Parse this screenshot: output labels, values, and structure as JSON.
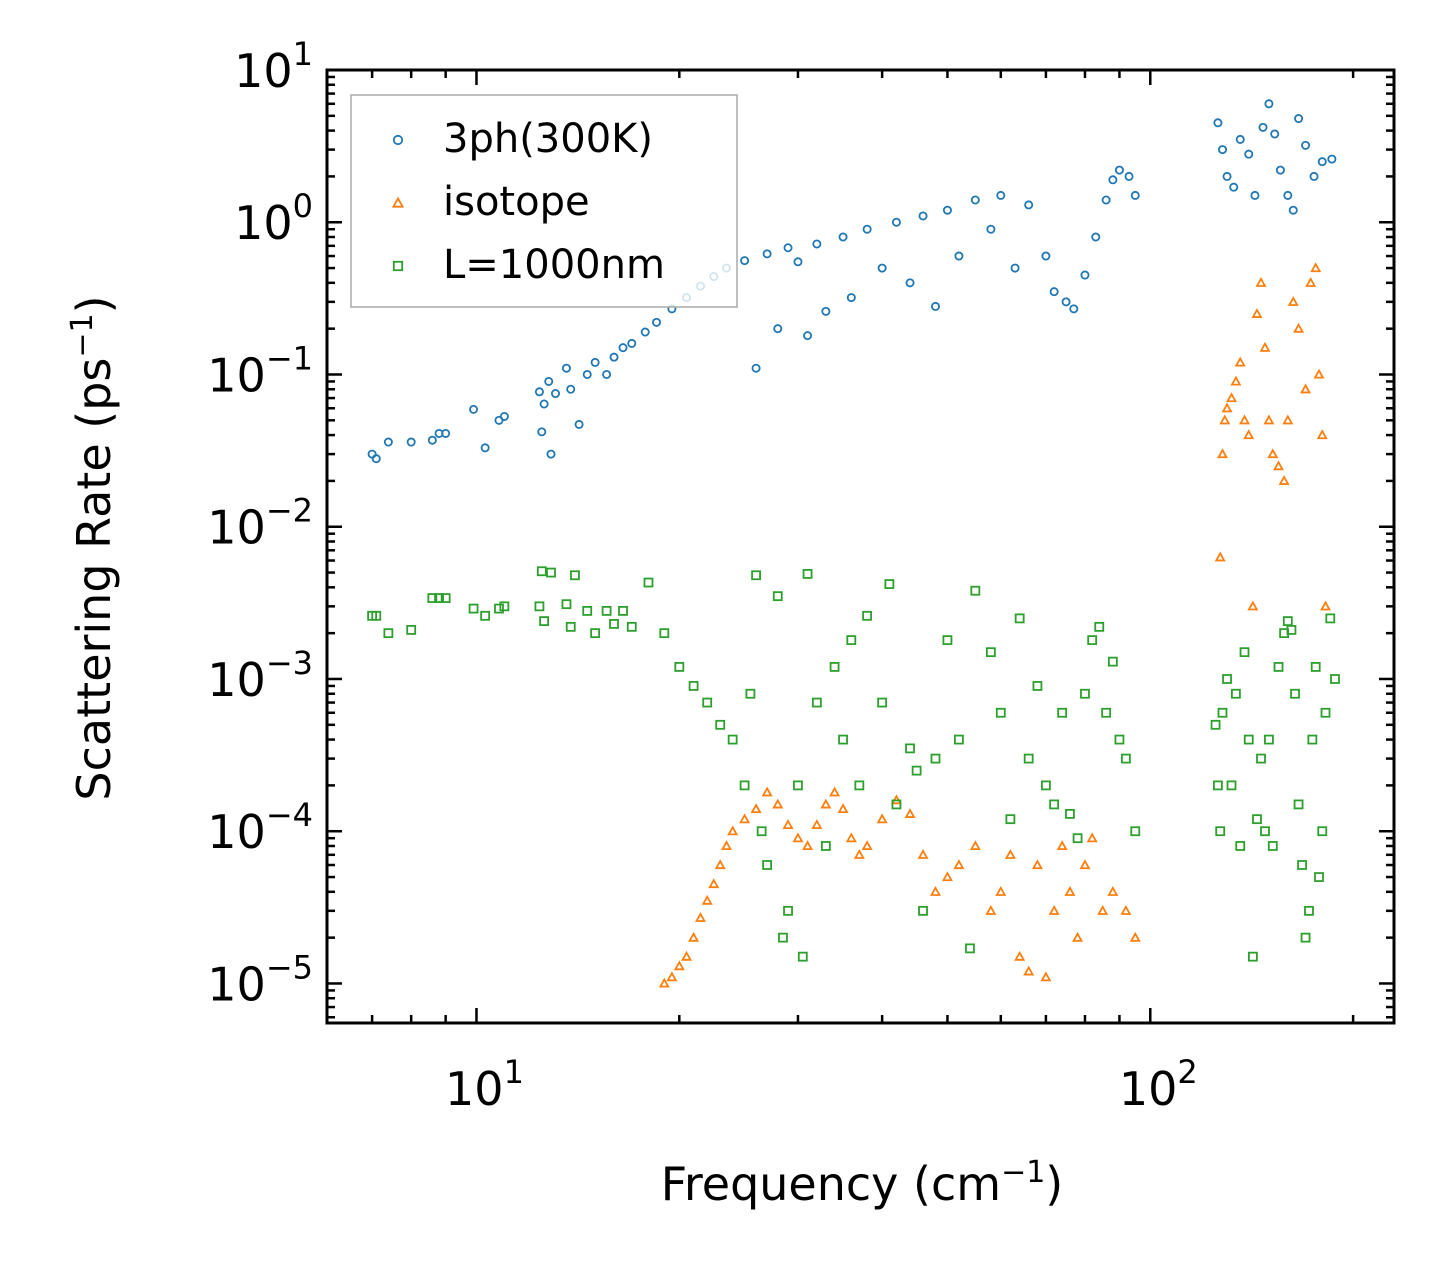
{
  "chart_data": {
    "type": "scatter",
    "x_scale": "log",
    "y_scale": "log",
    "xlabel": {
      "base": "Frequency (cm",
      "sup": "−1",
      "tail": ")"
    },
    "ylabel": {
      "base": "Scattering Rate (ps",
      "sup": "−1",
      "tail": ")"
    },
    "xlim": [
      6,
      230
    ],
    "ylim": [
      5.5e-06,
      10
    ],
    "x_ticks": [
      {
        "value": 10,
        "base": "10",
        "exp": "1"
      },
      {
        "value": 100,
        "base": "10",
        "exp": "2"
      }
    ],
    "y_ticks": [
      {
        "value": 10,
        "base": "10",
        "exp": "1"
      },
      {
        "value": 1,
        "base": "10",
        "exp": "0"
      },
      {
        "value": 0.1,
        "base": "10",
        "exp": "−1"
      },
      {
        "value": 0.01,
        "base": "10",
        "exp": "−2"
      },
      {
        "value": 0.001,
        "base": "10",
        "exp": "−3"
      },
      {
        "value": 0.0001,
        "base": "10",
        "exp": "−4"
      },
      {
        "value": 1e-05,
        "base": "10",
        "exp": "−5"
      }
    ],
    "legend_position": "top-left",
    "series": [
      {
        "name": "3ph(300K)",
        "marker": "circle",
        "color": "#1f77b4",
        "points": [
          [
            7,
            0.03
          ],
          [
            7.1,
            0.028
          ],
          [
            7.4,
            0.036
          ],
          [
            8,
            0.036
          ],
          [
            8.6,
            0.037
          ],
          [
            8.8,
            0.041
          ],
          [
            9,
            0.041
          ],
          [
            9.9,
            0.059
          ],
          [
            10.3,
            0.033
          ],
          [
            10.8,
            0.05
          ],
          [
            11,
            0.053
          ],
          [
            12.4,
            0.077
          ],
          [
            12.5,
            0.042
          ],
          [
            12.6,
            0.064
          ],
          [
            12.8,
            0.09
          ],
          [
            12.9,
            0.03
          ],
          [
            13.1,
            0.075
          ],
          [
            13.6,
            0.11
          ],
          [
            13.8,
            0.08
          ],
          [
            14.2,
            0.047
          ],
          [
            14.6,
            0.1
          ],
          [
            15,
            0.12
          ],
          [
            15.6,
            0.1
          ],
          [
            16,
            0.13
          ],
          [
            16.5,
            0.15
          ],
          [
            17,
            0.16
          ],
          [
            17.8,
            0.19
          ],
          [
            18.5,
            0.22
          ],
          [
            19.5,
            0.27
          ],
          [
            20.5,
            0.32
          ],
          [
            21.5,
            0.38
          ],
          [
            22.5,
            0.44
          ],
          [
            23.5,
            0.5
          ],
          [
            25,
            0.56
          ],
          [
            26,
            0.11
          ],
          [
            27,
            0.62
          ],
          [
            28,
            0.2
          ],
          [
            29,
            0.68
          ],
          [
            30,
            0.55
          ],
          [
            31,
            0.18
          ],
          [
            32,
            0.72
          ],
          [
            33,
            0.26
          ],
          [
            35,
            0.8
          ],
          [
            36,
            0.32
          ],
          [
            38,
            0.9
          ],
          [
            40,
            0.5
          ],
          [
            42,
            1.0
          ],
          [
            44,
            0.4
          ],
          [
            46,
            1.1
          ],
          [
            48,
            0.28
          ],
          [
            50,
            1.2
          ],
          [
            52,
            0.6
          ],
          [
            55,
            1.4
          ],
          [
            58,
            0.9
          ],
          [
            60,
            1.5
          ],
          [
            63,
            0.5
          ],
          [
            66,
            1.3
          ],
          [
            70,
            0.6
          ],
          [
            72,
            0.35
          ],
          [
            75,
            0.3
          ],
          [
            77,
            0.27
          ],
          [
            80,
            0.45
          ],
          [
            83,
            0.8
          ],
          [
            86,
            1.4
          ],
          [
            88,
            1.9
          ],
          [
            90,
            2.2
          ],
          [
            93,
            2.0
          ],
          [
            95,
            1.5
          ],
          [
            126,
            4.5
          ],
          [
            128,
            3.0
          ],
          [
            130,
            2.0
          ],
          [
            133,
            1.7
          ],
          [
            136,
            3.5
          ],
          [
            140,
            2.8
          ],
          [
            143,
            1.5
          ],
          [
            147,
            4.2
          ],
          [
            150,
            6.0
          ],
          [
            153,
            3.8
          ],
          [
            156,
            2.2
          ],
          [
            160,
            1.5
          ],
          [
            163,
            1.2
          ],
          [
            166,
            4.8
          ],
          [
            170,
            3.2
          ],
          [
            175,
            2.0
          ],
          [
            180,
            2.5
          ],
          [
            186,
            2.6
          ]
        ]
      },
      {
        "name": "isotope",
        "marker": "triangle",
        "color": "#ff7f0e",
        "points": [
          [
            19,
            1e-05
          ],
          [
            19.5,
            1.1e-05
          ],
          [
            20,
            1.3e-05
          ],
          [
            20.5,
            1.5e-05
          ],
          [
            21,
            2e-05
          ],
          [
            21.5,
            2.7e-05
          ],
          [
            22,
            3.5e-05
          ],
          [
            22.5,
            4.5e-05
          ],
          [
            23,
            6e-05
          ],
          [
            23.5,
            8e-05
          ],
          [
            24,
            0.0001
          ],
          [
            25,
            0.00012
          ],
          [
            26,
            0.00014
          ],
          [
            27,
            0.00018
          ],
          [
            28,
            0.00015
          ],
          [
            29,
            0.00011
          ],
          [
            30,
            9e-05
          ],
          [
            31,
            8e-05
          ],
          [
            32,
            0.00011
          ],
          [
            33,
            0.00015
          ],
          [
            34,
            0.00018
          ],
          [
            35,
            0.00014
          ],
          [
            36,
            9e-05
          ],
          [
            37,
            7e-05
          ],
          [
            38,
            8e-05
          ],
          [
            40,
            0.00012
          ],
          [
            42,
            0.00016
          ],
          [
            44,
            0.00013
          ],
          [
            46,
            7e-05
          ],
          [
            48,
            4e-05
          ],
          [
            50,
            5e-05
          ],
          [
            52,
            6e-05
          ],
          [
            55,
            8e-05
          ],
          [
            58,
            3e-05
          ],
          [
            60,
            4e-05
          ],
          [
            62,
            7e-05
          ],
          [
            64,
            1.5e-05
          ],
          [
            66,
            1.2e-05
          ],
          [
            68,
            6e-05
          ],
          [
            70,
            1.1e-05
          ],
          [
            72,
            3e-05
          ],
          [
            74,
            8e-05
          ],
          [
            76,
            4e-05
          ],
          [
            78,
            2e-05
          ],
          [
            80,
            6e-05
          ],
          [
            82,
            9e-05
          ],
          [
            85,
            3e-05
          ],
          [
            88,
            4e-05
          ],
          [
            92,
            3e-05
          ],
          [
            95,
            2e-05
          ],
          [
            127,
            0.0063
          ],
          [
            128,
            0.03
          ],
          [
            129,
            0.05
          ],
          [
            130,
            0.06
          ],
          [
            132,
            0.07
          ],
          [
            134,
            0.09
          ],
          [
            136,
            0.12
          ],
          [
            138,
            0.05
          ],
          [
            140,
            0.04
          ],
          [
            142,
            0.003
          ],
          [
            144,
            0.25
          ],
          [
            146,
            0.4
          ],
          [
            148,
            0.15
          ],
          [
            150,
            0.05
          ],
          [
            152,
            0.03
          ],
          [
            155,
            0.025
          ],
          [
            158,
            0.02
          ],
          [
            160,
            0.05
          ],
          [
            163,
            0.3
          ],
          [
            166,
            0.2
          ],
          [
            170,
            0.08
          ],
          [
            173,
            0.4
          ],
          [
            176,
            0.5
          ],
          [
            178,
            0.1
          ],
          [
            180,
            0.04
          ],
          [
            182,
            0.003
          ]
        ]
      },
      {
        "name": "L=1000nm",
        "marker": "square",
        "color": "#2ca02c",
        "points": [
          [
            7,
            0.0026
          ],
          [
            7.1,
            0.0026
          ],
          [
            7.4,
            0.002
          ],
          [
            8,
            0.0021
          ],
          [
            8.6,
            0.0034
          ],
          [
            8.8,
            0.0034
          ],
          [
            9,
            0.0034
          ],
          [
            9.9,
            0.0029
          ],
          [
            10.3,
            0.0026
          ],
          [
            10.8,
            0.0029
          ],
          [
            11,
            0.003
          ],
          [
            12.4,
            0.003
          ],
          [
            12.5,
            0.0051
          ],
          [
            12.6,
            0.0024
          ],
          [
            12.9,
            0.005
          ],
          [
            13.6,
            0.0031
          ],
          [
            13.8,
            0.0022
          ],
          [
            14,
            0.0048
          ],
          [
            14.6,
            0.0028
          ],
          [
            15,
            0.002
          ],
          [
            15.6,
            0.0028
          ],
          [
            16,
            0.0023
          ],
          [
            16.5,
            0.0028
          ],
          [
            17,
            0.0022
          ],
          [
            18,
            0.0043
          ],
          [
            19,
            0.002
          ],
          [
            20,
            0.0012
          ],
          [
            21,
            0.0009
          ],
          [
            22,
            0.0007
          ],
          [
            23,
            0.0005
          ],
          [
            24,
            0.0004
          ],
          [
            25,
            0.0002
          ],
          [
            25.5,
            0.0008
          ],
          [
            26,
            0.0048
          ],
          [
            26.5,
            0.0001
          ],
          [
            27,
            6e-05
          ],
          [
            28,
            0.0035
          ],
          [
            28.5,
            2e-05
          ],
          [
            29,
            3e-05
          ],
          [
            30,
            0.0002
          ],
          [
            30.5,
            1.5e-05
          ],
          [
            31,
            0.0049
          ],
          [
            32,
            0.0007
          ],
          [
            33,
            8e-05
          ],
          [
            34,
            0.0012
          ],
          [
            35,
            0.0004
          ],
          [
            36,
            0.0018
          ],
          [
            37,
            0.0002
          ],
          [
            38,
            0.0026
          ],
          [
            40,
            0.0007
          ],
          [
            41,
            0.0042
          ],
          [
            42,
            0.00015
          ],
          [
            44,
            0.00035
          ],
          [
            45,
            0.00025
          ],
          [
            46,
            3e-05
          ],
          [
            48,
            0.0003
          ],
          [
            50,
            0.0018
          ],
          [
            52,
            0.0004
          ],
          [
            54,
            1.7e-05
          ],
          [
            55,
            0.0038
          ],
          [
            58,
            0.0015
          ],
          [
            60,
            0.0006
          ],
          [
            62,
            0.00012
          ],
          [
            64,
            0.0025
          ],
          [
            66,
            0.0003
          ],
          [
            68,
            0.0009
          ],
          [
            70,
            0.0002
          ],
          [
            72,
            0.00015
          ],
          [
            74,
            0.0006
          ],
          [
            76,
            0.00013
          ],
          [
            78,
            9e-05
          ],
          [
            80,
            0.0008
          ],
          [
            82,
            0.0018
          ],
          [
            84,
            0.0022
          ],
          [
            86,
            0.0006
          ],
          [
            88,
            0.0013
          ],
          [
            90,
            0.0004
          ],
          [
            92,
            0.0003
          ],
          [
            95,
            0.0001
          ],
          [
            125,
            0.0005
          ],
          [
            126,
            0.0002
          ],
          [
            127,
            0.0001
          ],
          [
            128,
            0.0006
          ],
          [
            130,
            0.001
          ],
          [
            132,
            0.0002
          ],
          [
            134,
            0.0008
          ],
          [
            136,
            8e-05
          ],
          [
            138,
            0.0015
          ],
          [
            140,
            0.0004
          ],
          [
            142,
            1.5e-05
          ],
          [
            144,
            0.00012
          ],
          [
            146,
            0.0003
          ],
          [
            148,
            0.0001
          ],
          [
            150,
            0.0004
          ],
          [
            152,
            8e-05
          ],
          [
            155,
            0.0012
          ],
          [
            158,
            0.002
          ],
          [
            160,
            0.0024
          ],
          [
            162,
            0.0021
          ],
          [
            164,
            0.0008
          ],
          [
            166,
            0.00015
          ],
          [
            168,
            6e-05
          ],
          [
            170,
            2e-05
          ],
          [
            172,
            3e-05
          ],
          [
            174,
            0.0004
          ],
          [
            176,
            0.0012
          ],
          [
            178,
            5e-05
          ],
          [
            180,
            0.0001
          ],
          [
            182,
            0.0006
          ],
          [
            185,
            0.0025
          ],
          [
            188,
            0.001
          ]
        ]
      }
    ]
  }
}
